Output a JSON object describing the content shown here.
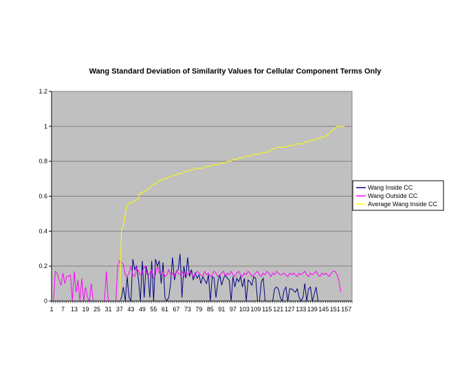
{
  "chart_data": {
    "type": "line",
    "title": "Wang Standard Deviation of Similarity Values for Cellular Component Terms Only",
    "xlabel": "",
    "ylabel": "",
    "ylim": [
      0,
      1.2
    ],
    "xlim": [
      1,
      160
    ],
    "y_ticks": [
      "0",
      "0.2",
      "0.4",
      "0.6",
      "0.8",
      "1",
      "1.2"
    ],
    "x_ticks": [
      "1",
      "7",
      "13",
      "19",
      "25",
      "31",
      "37",
      "43",
      "49",
      "55",
      "61",
      "67",
      "73",
      "79",
      "85",
      "91",
      "97",
      "103",
      "109",
      "115",
      "121",
      "127",
      "133",
      "139",
      "145",
      "151",
      "157"
    ],
    "grid": "horizontal",
    "plot_background": "#c0c0c0",
    "legend_position": "right",
    "series": [
      {
        "name": "Wang Inside CC",
        "color": "#000080",
        "values": [
          0,
          0,
          0,
          0,
          0,
          0,
          0,
          0,
          0,
          0,
          0,
          0,
          0,
          0,
          0,
          0,
          0,
          0,
          0,
          0,
          0,
          0,
          0,
          0,
          0,
          0,
          0,
          0,
          0,
          0,
          0,
          0,
          0,
          0,
          0,
          0,
          0,
          0.02,
          0.08,
          0,
          0.14,
          0.02,
          0,
          0.24,
          0.18,
          0.2,
          0.12,
          0,
          0.23,
          0.02,
          0.2,
          0.15,
          0.02,
          0.23,
          0,
          0.24,
          0.2,
          0.23,
          0.1,
          0.22,
          0.02,
          0,
          0.02,
          0.1,
          0.25,
          0.12,
          0.17,
          0.18,
          0.27,
          0.02,
          0.2,
          0.13,
          0.25,
          0.14,
          0.18,
          0.12,
          0.16,
          0.13,
          0.15,
          0.1,
          0.14,
          0.12,
          0.1,
          0.15,
          0,
          0.14,
          0.13,
          0.02,
          0.11,
          0.15,
          0.09,
          0.13,
          0.15,
          0.13,
          0.12,
          0,
          0.14,
          0.08,
          0.13,
          0.11,
          0.14,
          0.08,
          0.13,
          0,
          0.12,
          0.11,
          0.09,
          0.14,
          0.13,
          0,
          0,
          0.11,
          0.13,
          0,
          0,
          0,
          0,
          0,
          0.07,
          0.08,
          0.07,
          0.02,
          0,
          0.06,
          0.08,
          0,
          0.07,
          0.07,
          0.06,
          0.05,
          0.07,
          0.02,
          0,
          0.02,
          0.1,
          0,
          0.07,
          0.08,
          0,
          0.04,
          0.08,
          0,
          0,
          0
        ]
      },
      {
        "name": "Wang Outside CC",
        "color": "#ff00ff",
        "values": [
          0,
          0,
          0.17,
          0.16,
          0.12,
          0.09,
          0.16,
          0.1,
          0.14,
          0.14,
          0.15,
          0,
          0.17,
          0.05,
          0.12,
          0,
          0.13,
          0,
          0.08,
          0.02,
          0,
          0.1,
          0,
          0,
          0,
          0,
          0,
          0,
          0,
          0.17,
          0,
          0,
          0,
          0,
          0,
          0.2,
          0.23,
          0.22,
          0.21,
          0.15,
          0.14,
          0.16,
          0.2,
          0.15,
          0.14,
          0.19,
          0.17,
          0.15,
          0.16,
          0.2,
          0.18,
          0.14,
          0.16,
          0.18,
          0.13,
          0.15,
          0.2,
          0.16,
          0.15,
          0.17,
          0.14,
          0.15,
          0.18,
          0.15,
          0.16,
          0.14,
          0.17,
          0.16,
          0.15,
          0.17,
          0.14,
          0.16,
          0.15,
          0.17,
          0.16,
          0.14,
          0.15,
          0.17,
          0.16,
          0.15,
          0.14,
          0.17,
          0.15,
          0.16,
          0.14,
          0.15,
          0.17,
          0.16,
          0.14,
          0.15,
          0.16,
          0.17,
          0.14,
          0.16,
          0.15,
          0.17,
          0.15,
          0.14,
          0.16,
          0.17,
          0.15,
          0.14,
          0.16,
          0.15,
          0.17,
          0.16,
          0.14,
          0.15,
          0.16,
          0.17,
          0.15,
          0.14,
          0.16,
          0.15,
          0.17,
          0.16,
          0.14,
          0.16,
          0.15,
          0.17,
          0.16,
          0.15,
          0.15,
          0.16,
          0.15,
          0.14,
          0.16,
          0.15,
          0.16,
          0.15,
          0.14,
          0.16,
          0.15,
          0.16,
          0.17,
          0.15,
          0.14,
          0.16,
          0.15,
          0.16,
          0.17,
          0.15,
          0.14,
          0.16,
          0.15,
          0.16,
          0.15,
          0.14,
          0.16,
          0.17,
          0.17,
          0.15,
          0.12,
          0.05
        ]
      },
      {
        "name": "Average Wang Inside CC",
        "color": "#ffff00",
        "values": [
          0,
          0,
          0,
          0,
          0,
          0,
          0,
          0,
          0,
          0,
          0,
          0,
          0,
          0,
          0,
          0,
          0,
          0,
          0,
          0,
          0,
          0,
          0,
          0,
          0,
          0,
          0,
          0,
          0,
          0,
          0,
          0,
          0,
          0,
          0,
          0,
          0,
          0.41,
          0.43,
          0.5,
          0.55,
          0.56,
          0.56,
          0.57,
          0.57,
          0.58,
          0.59,
          0.62,
          0.62,
          0.63,
          0.63,
          0.64,
          0.65,
          0.66,
          0.67,
          0.67,
          0.68,
          0.69,
          0.69,
          0.7,
          0.7,
          0.7,
          0.71,
          0.71,
          0.72,
          0.72,
          0.72,
          0.73,
          0.73,
          0.73,
          0.74,
          0.74,
          0.74,
          0.75,
          0.75,
          0.75,
          0.76,
          0.76,
          0.76,
          0.76,
          0.76,
          0.77,
          0.77,
          0.77,
          0.77,
          0.78,
          0.78,
          0.78,
          0.78,
          0.79,
          0.79,
          0.79,
          0.79,
          0.8,
          0.8,
          0.8,
          0.81,
          0.81,
          0.81,
          0.82,
          0.82,
          0.82,
          0.82,
          0.83,
          0.83,
          0.83,
          0.83,
          0.84,
          0.84,
          0.84,
          0.84,
          0.85,
          0.85,
          0.85,
          0.85,
          0.86,
          0.86,
          0.87,
          0.87,
          0.88,
          0.88,
          0.88,
          0.88,
          0.88,
          0.88,
          0.89,
          0.89,
          0.89,
          0.89,
          0.9,
          0.9,
          0.9,
          0.9,
          0.9,
          0.91,
          0.91,
          0.91,
          0.92,
          0.92,
          0.92,
          0.93,
          0.93,
          0.93,
          0.94,
          0.94,
          0.94,
          0.95,
          0.96,
          0.97,
          0.98,
          0.99,
          1.0,
          1.0,
          1.0,
          1.0,
          1.0
        ]
      }
    ]
  }
}
